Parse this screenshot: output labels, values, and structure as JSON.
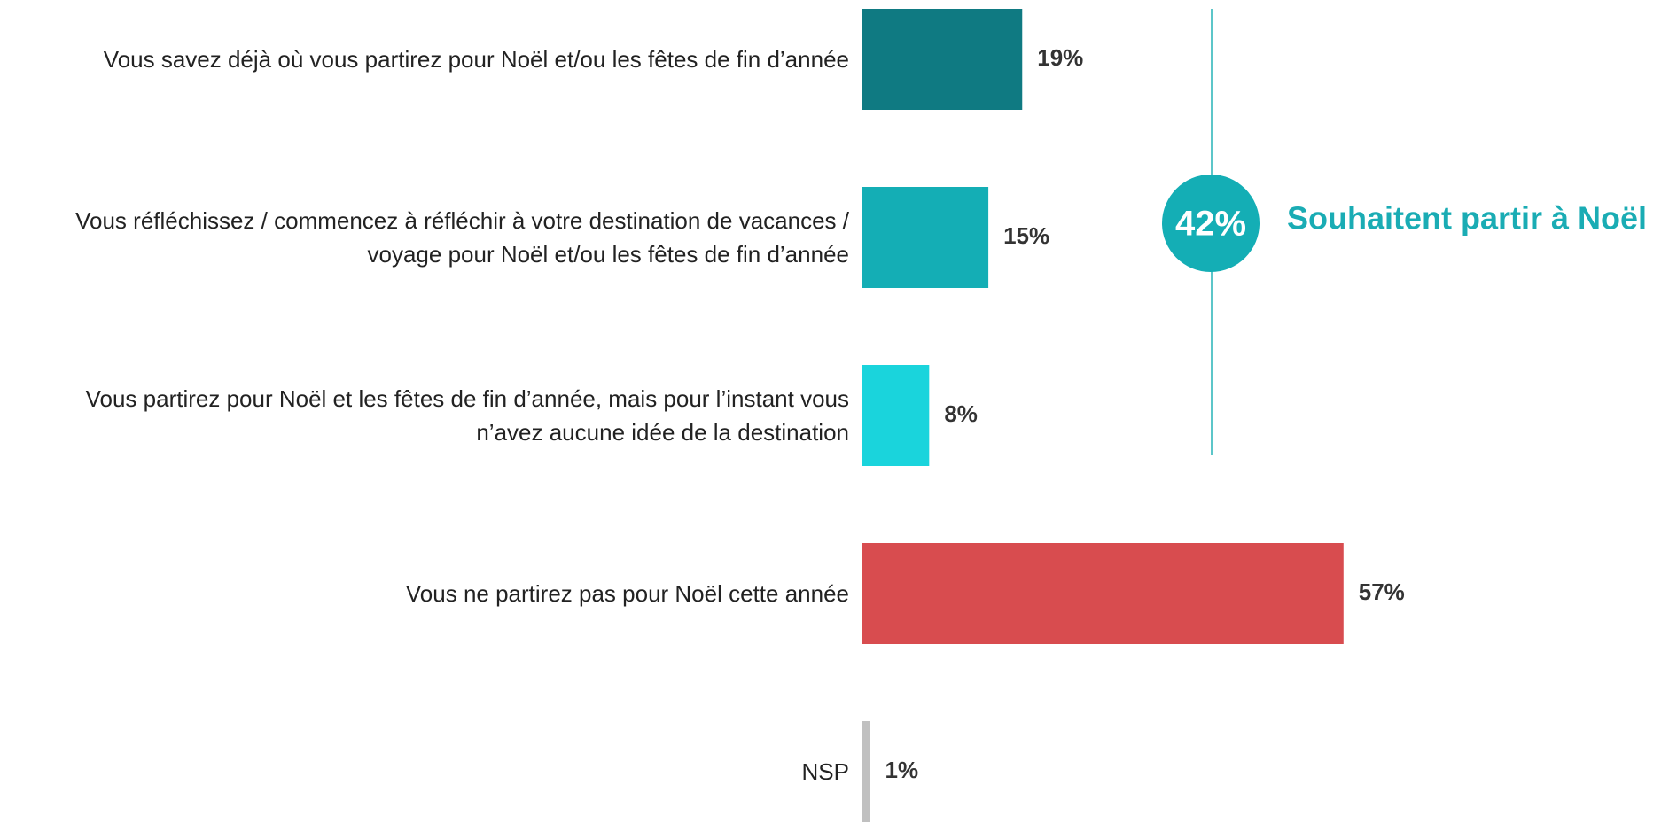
{
  "chart_data": {
    "type": "bar",
    "orientation": "horizontal",
    "categories": [
      "Vous savez déjà où vous partirez pour Noël et/ou les fêtes de fin d’année",
      "Vous réfléchissez / commencez à réfléchir à votre destination de vacances / voyage pour Noël et/ou les fêtes de fin d’année",
      "Vous partirez pour Noël et les fêtes de fin d’année, mais pour l’instant vous n’avez aucune idée de la destination",
      "Vous ne partirez pas pour Noël cette année",
      "NSP"
    ],
    "values": [
      19,
      15,
      8,
      57,
      1
    ],
    "value_labels": [
      "19%",
      "15%",
      "8%",
      "57%",
      "1%"
    ],
    "colors": [
      "#0f7a82",
      "#14aeb5",
      "#1ad4dc",
      "#d84c4f",
      "#c0c0c0"
    ],
    "annotation": {
      "value": 42,
      "label": "42%",
      "text": "Souhaitent partir à Noël",
      "color": "#1aacb4"
    }
  }
}
